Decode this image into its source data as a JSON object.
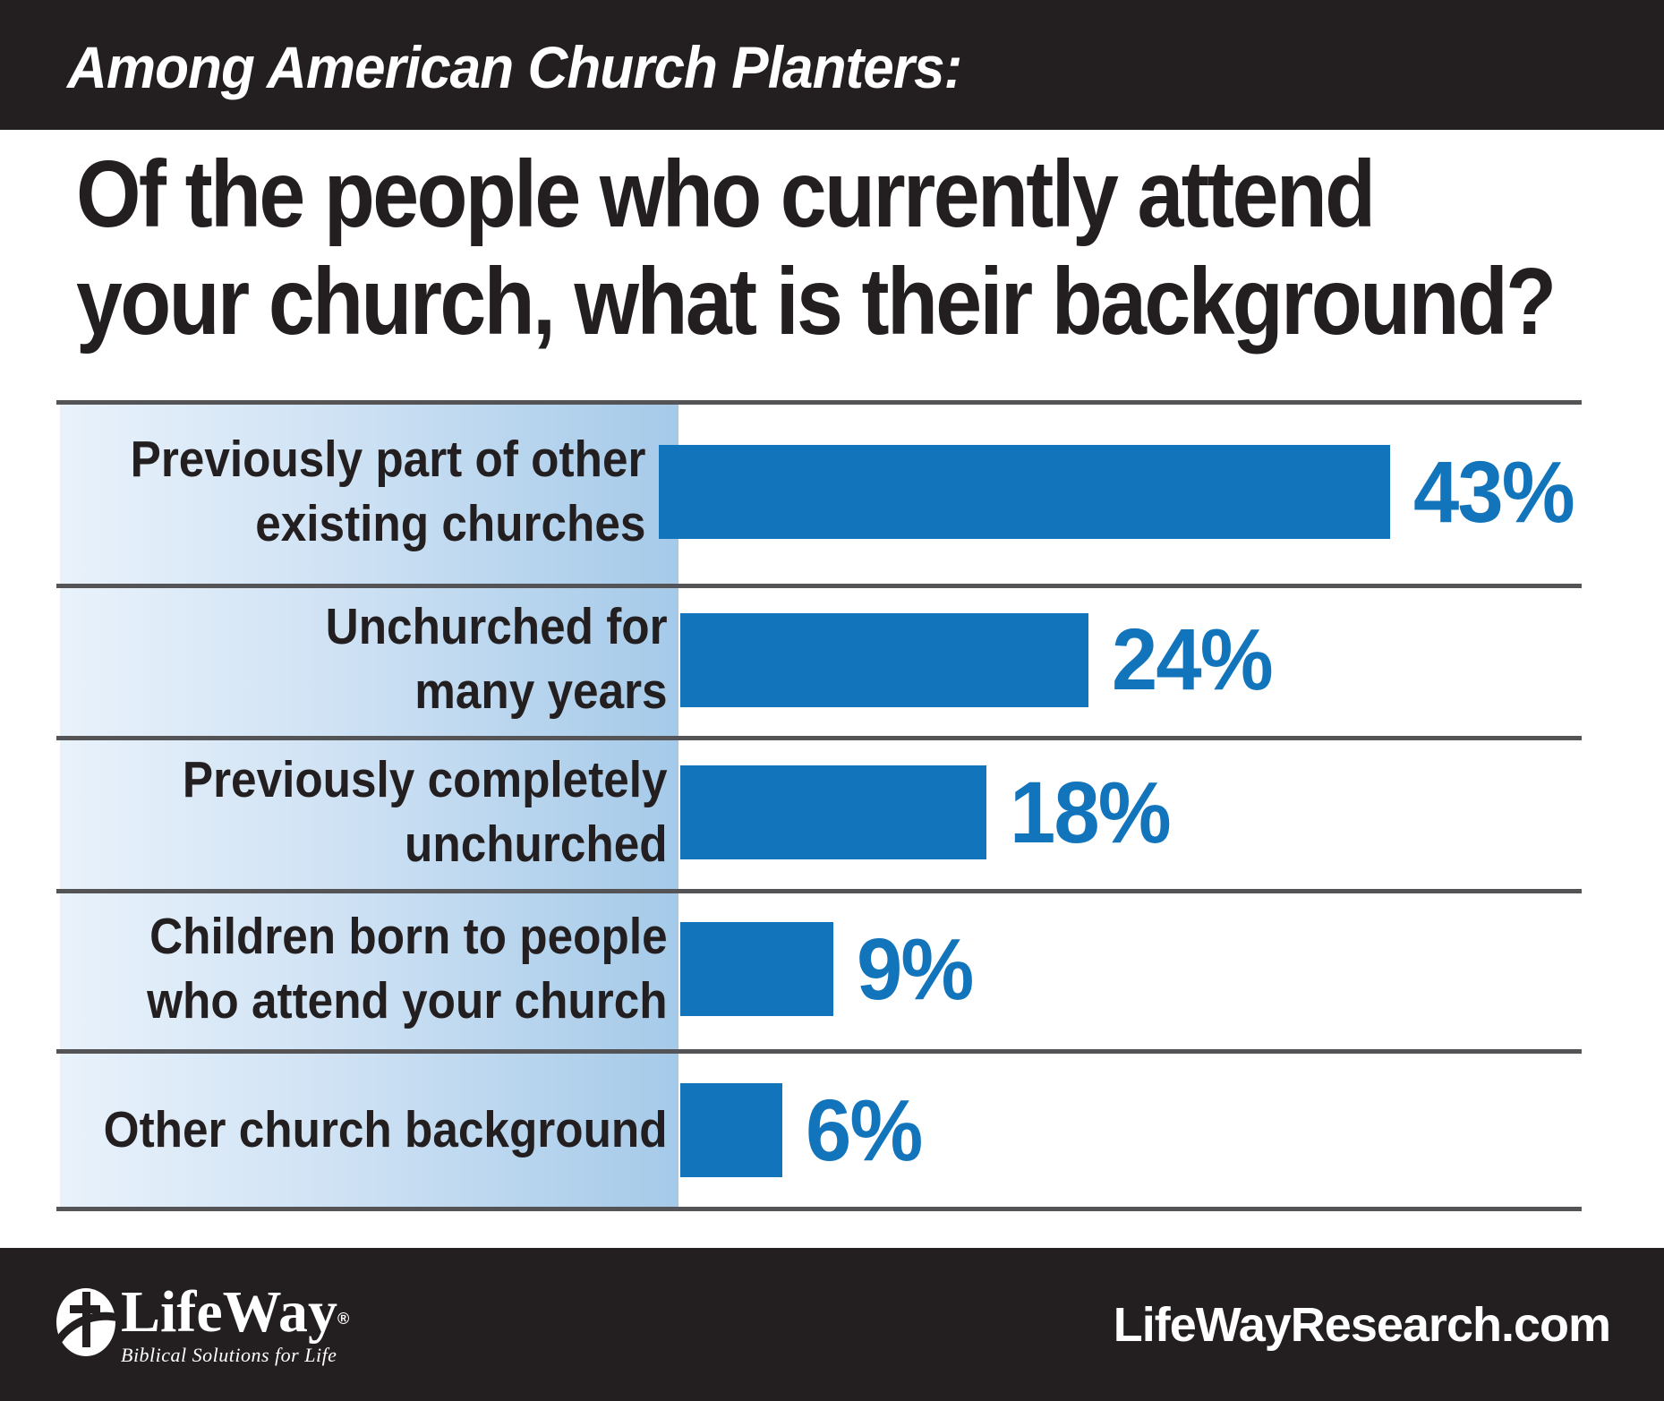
{
  "header": {
    "title": "Among American Church Planters:"
  },
  "question": {
    "line1": "Of the people who currently attend",
    "line2": "your church, what is their background?"
  },
  "chart_data": {
    "type": "bar",
    "orientation": "horizontal",
    "title": "Of the people who currently attend your church, what is their background?",
    "categories": [
      "Previously part of other existing churches",
      "Unchurched for many years",
      "Previously completely unchurched",
      "Children born to people who attend your church",
      "Other church background"
    ],
    "values": [
      43,
      24,
      18,
      9,
      6
    ],
    "unit": "%",
    "xlim": [
      0,
      50
    ],
    "grid": "row-separators-only",
    "bar_color": "#1275bc",
    "value_label_color": "#1275bc",
    "rows": [
      {
        "label_line1": "Previously part of other",
        "label_line2": "existing churches",
        "value": 43,
        "value_label": "43%"
      },
      {
        "label_line1": "Unchurched for",
        "label_line2": "many years",
        "value": 24,
        "value_label": "24%"
      },
      {
        "label_line1": "Previously completely",
        "label_line2": "unchurched",
        "value": 18,
        "value_label": "18%"
      },
      {
        "label_line1": "Children born to people",
        "label_line2": "who attend your church",
        "value": 9,
        "value_label": "9%"
      },
      {
        "label_line1": "Other church background",
        "label_line2": "",
        "value": 6,
        "value_label": "6%"
      }
    ]
  },
  "footer": {
    "logo_name": "LifeWay",
    "registered_mark": "®",
    "logo_tagline": "Biblical Solutions for Life",
    "url": "LifeWayResearch.com"
  }
}
